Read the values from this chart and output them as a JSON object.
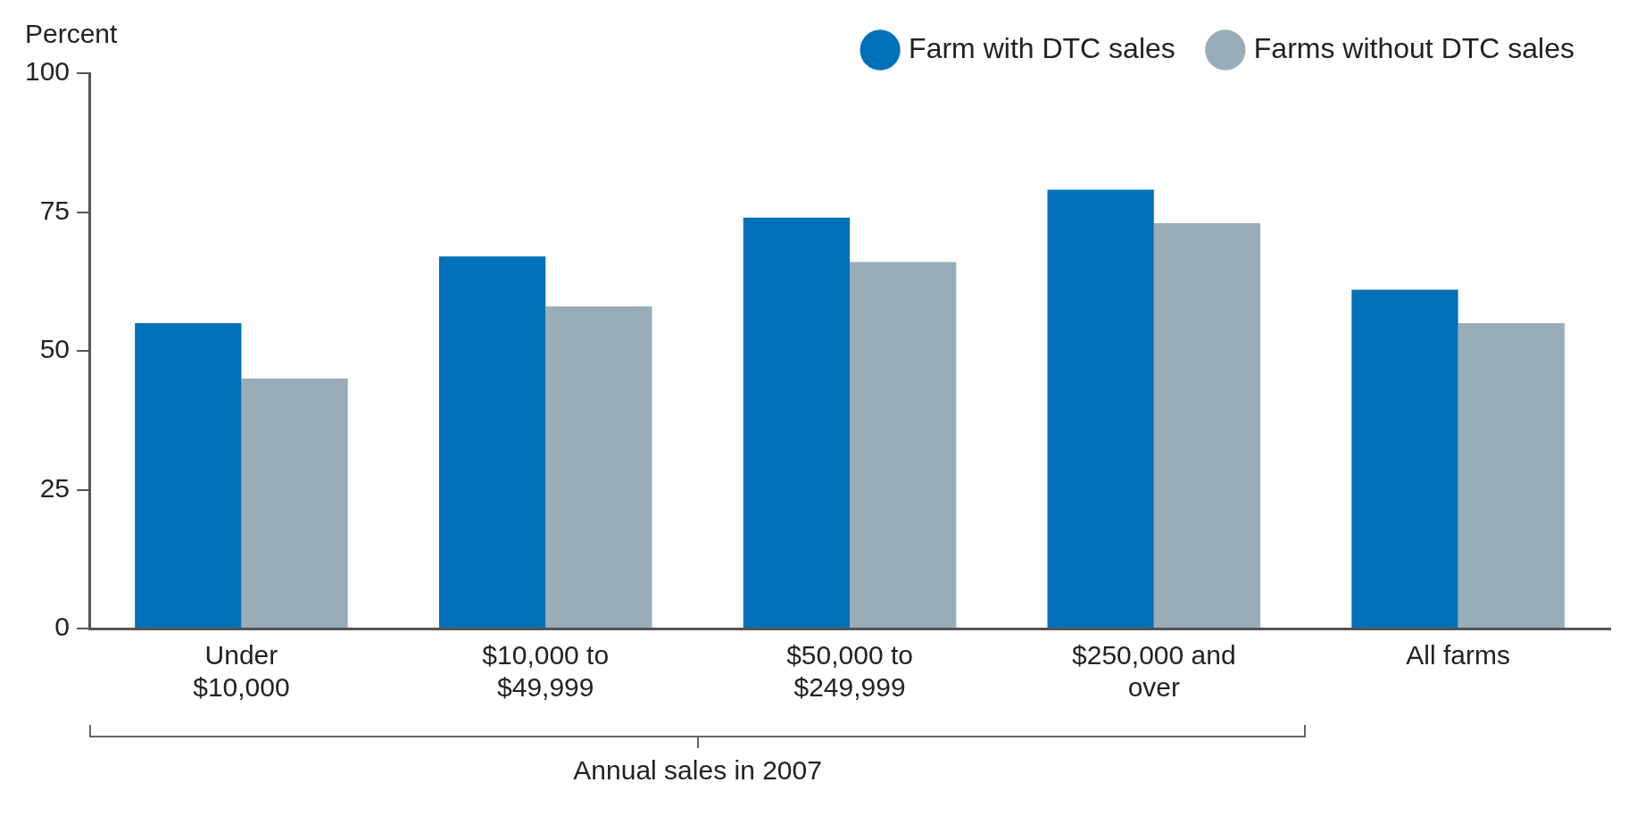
{
  "chart_data": {
    "type": "bar",
    "ylabel": "Percent",
    "xlabel": "Annual sales in 2007",
    "categories": [
      "Under $10,000",
      "$10,000 to $49,999",
      "$50,000 to $249,999",
      "$250,000 and over",
      "All farms"
    ],
    "series": [
      {
        "name": "Farm with DTC sales",
        "color": "#0070b8",
        "values": [
          55,
          67,
          74,
          79,
          61
        ]
      },
      {
        "name": "Farms without DTC sales",
        "color": "#98adb8",
        "values": [
          45,
          58,
          66,
          73,
          55
        ]
      }
    ],
    "ylim": [
      0,
      100
    ],
    "yticks": [
      0,
      25,
      50,
      75,
      100
    ],
    "grid": false,
    "legend": "top right"
  }
}
